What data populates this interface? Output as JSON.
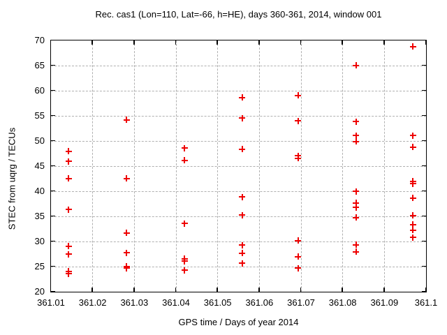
{
  "chart_data": {
    "type": "scatter",
    "title": "Rec. cas1 (Lon=110, Lat=-66, h=HE), days 360-361, 2014, window 001",
    "xlabel": "GPS time / Days of year 2014",
    "ylabel": "STEC from uqrg / TECUs",
    "xlim": [
      361.01,
      361.1
    ],
    "ylim": [
      20,
      70
    ],
    "grid": true,
    "legend": "none",
    "xticks": {
      "values": [
        361.01,
        361.02,
        361.03,
        361.04,
        361.05,
        361.06,
        361.07,
        361.08,
        361.09,
        361.1
      ],
      "labels": [
        "361.01",
        "361.02",
        "361.03",
        "361.04",
        "361.05",
        "361.06",
        "361.07",
        "361.08",
        "361.09",
        "361.1"
      ]
    },
    "yticks": {
      "values": [
        20,
        25,
        30,
        35,
        40,
        45,
        50,
        55,
        60,
        65,
        70
      ],
      "labels": [
        "20",
        "25",
        "30",
        "35",
        "40",
        "45",
        "50",
        "55",
        "60",
        "65",
        "70"
      ]
    },
    "marker": {
      "shape": "plus",
      "color": "#ee0000",
      "size": 9
    },
    "series": [
      {
        "name": "STEC",
        "points": [
          [
            361.0143,
            47.9
          ],
          [
            361.0143,
            45.9
          ],
          [
            361.0143,
            42.5
          ],
          [
            361.0143,
            36.3
          ],
          [
            361.0143,
            29.0
          ],
          [
            361.0143,
            27.4
          ],
          [
            361.0143,
            24.0
          ],
          [
            361.0143,
            23.5
          ],
          [
            361.0282,
            54.1
          ],
          [
            361.0282,
            42.5
          ],
          [
            361.0282,
            31.6
          ],
          [
            361.0282,
            27.7
          ],
          [
            361.0282,
            25.0
          ],
          [
            361.0282,
            24.6
          ],
          [
            361.0421,
            48.5
          ],
          [
            361.0421,
            46.1
          ],
          [
            361.0421,
            33.5
          ],
          [
            361.0421,
            26.5
          ],
          [
            361.0421,
            26.0
          ],
          [
            361.0421,
            24.2
          ],
          [
            361.056,
            58.6
          ],
          [
            361.056,
            54.5
          ],
          [
            361.056,
            48.3
          ],
          [
            361.056,
            38.8
          ],
          [
            361.056,
            35.2
          ],
          [
            361.056,
            29.2
          ],
          [
            361.056,
            27.6
          ],
          [
            361.056,
            25.6
          ],
          [
            361.0694,
            59.0
          ],
          [
            361.0694,
            53.9
          ],
          [
            361.0694,
            47.0
          ],
          [
            361.0694,
            46.5
          ],
          [
            361.0694,
            30.1
          ],
          [
            361.0694,
            26.9
          ],
          [
            361.0694,
            24.6
          ],
          [
            361.0833,
            65.0
          ],
          [
            361.0833,
            53.8
          ],
          [
            361.0833,
            51.0
          ],
          [
            361.0833,
            49.8
          ],
          [
            361.0833,
            39.9
          ],
          [
            361.0833,
            37.6
          ],
          [
            361.0833,
            36.7
          ],
          [
            361.0833,
            34.7
          ],
          [
            361.0833,
            29.3
          ],
          [
            361.0833,
            27.9
          ],
          [
            361.0969,
            68.7
          ],
          [
            361.0969,
            51.0
          ],
          [
            361.0969,
            48.7
          ],
          [
            361.0969,
            41.9
          ],
          [
            361.0969,
            41.4
          ],
          [
            361.0969,
            38.6
          ],
          [
            361.0969,
            35.1
          ],
          [
            361.0969,
            33.3
          ],
          [
            361.0969,
            32.2
          ],
          [
            361.0969,
            30.7
          ]
        ]
      }
    ]
  },
  "colors": {
    "background": "#ffffff",
    "frame": "#000000",
    "grid": "#b0b0b0",
    "marker": "#ee0000",
    "text": "#000000"
  }
}
